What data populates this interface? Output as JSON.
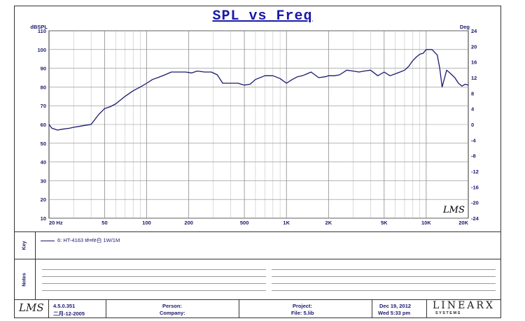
{
  "title": "SPL vs Freq",
  "chart_data": {
    "type": "line",
    "title": "SPL vs Freq",
    "ylabel": "dBSPL",
    "y2label": "Deg",
    "xscale": "log",
    "xlim": [
      20,
      20000
    ],
    "ylim": [
      10,
      110
    ],
    "y2lim": [
      -24,
      24
    ],
    "x_tick_labels": [
      {
        "value": 20,
        "label": "20 Hz"
      },
      {
        "value": 50,
        "label": "50"
      },
      {
        "value": 100,
        "label": "100"
      },
      {
        "value": 200,
        "label": "200"
      },
      {
        "value": 500,
        "label": "500"
      },
      {
        "value": 1000,
        "label": "1K"
      },
      {
        "value": 2000,
        "label": "2K"
      },
      {
        "value": 5000,
        "label": "5K"
      },
      {
        "value": 10000,
        "label": "10K"
      },
      {
        "value": 20000,
        "label": "20K"
      }
    ],
    "y_ticks": [
      110,
      100,
      90,
      80,
      70,
      60,
      50,
      40,
      30,
      20,
      10
    ],
    "y2_ticks": [
      24,
      20,
      16,
      12,
      8,
      4,
      0,
      -4,
      -8,
      -12,
      -16,
      -20,
      -24
    ],
    "grid": true,
    "series": [
      {
        "name": "6: HT-4163 tẽ¤fë白 1W/1M",
        "x": [
          20,
          21,
          23,
          25,
          28,
          30,
          33,
          36,
          40,
          45,
          50,
          55,
          60,
          70,
          80,
          90,
          100,
          110,
          120,
          135,
          150,
          170,
          190,
          210,
          230,
          260,
          290,
          320,
          350,
          400,
          450,
          500,
          550,
          600,
          700,
          800,
          900,
          1000,
          1100,
          1200,
          1300,
          1400,
          1500,
          1700,
          1900,
          2000,
          2200,
          2400,
          2700,
          3000,
          3300,
          3600,
          4000,
          4500,
          5000,
          5500,
          6000,
          6500,
          7000,
          7500,
          8000,
          8500,
          9000,
          9500,
          10000,
          11000,
          12000,
          12500,
          13000,
          14000,
          15000,
          16000,
          17000,
          18000,
          19000,
          20000
        ],
        "y": [
          60,
          58,
          57,
          57.5,
          58,
          58.5,
          59,
          59.5,
          60,
          65,
          68.5,
          69.5,
          71,
          75,
          78,
          80,
          82,
          84,
          85,
          86.5,
          88,
          88,
          88,
          87.5,
          88.5,
          88,
          88,
          86.5,
          82,
          82,
          82,
          81,
          81.5,
          84,
          86,
          86,
          84.5,
          82,
          84,
          85.5,
          86,
          87,
          88,
          85,
          85.5,
          86,
          86,
          86.5,
          89,
          88.5,
          88,
          88.5,
          89,
          86,
          88,
          86,
          87,
          88,
          89,
          91,
          94,
          96,
          97.5,
          98,
          100,
          100,
          97,
          90,
          80,
          89,
          87,
          85,
          82,
          80.5,
          81.5,
          81
        ]
      }
    ]
  },
  "logo_script": "LMS",
  "legend_label": "Key",
  "legend_entry": "6: HT-4163 tẽ¤fë白   1W/1M",
  "notes_label": "Notes",
  "footer": {
    "version": "4.5.0.351",
    "date_cn": "二月-12-2005",
    "person_label": "Person:",
    "company_label": "Company:",
    "project_label": "Project:",
    "file_label": "File: 5.lib",
    "date": "Dec 19, 2012",
    "time": "Wed  5:33 pm",
    "brand": "LINEARX",
    "brand_sub": "S Y S T E M S"
  }
}
